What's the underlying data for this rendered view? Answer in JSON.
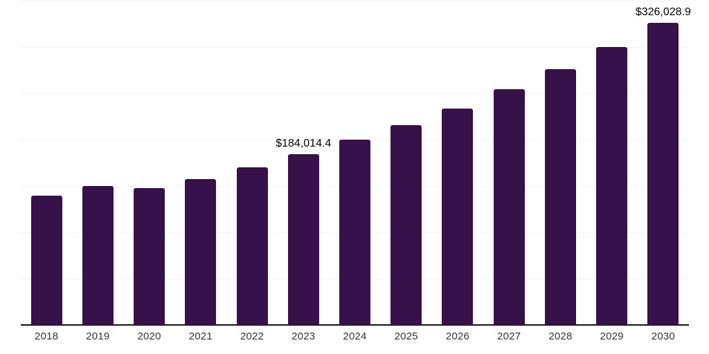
{
  "chart_data": {
    "type": "bar",
    "title": "",
    "xlabel": "",
    "ylabel": "",
    "categories": [
      "2018",
      "2019",
      "2020",
      "2021",
      "2022",
      "2023",
      "2024",
      "2025",
      "2026",
      "2027",
      "2028",
      "2029",
      "2030"
    ],
    "values": [
      139600,
      150100,
      147400,
      157600,
      170500,
      184014.4,
      199700,
      215900,
      233800,
      254500,
      276100,
      299800,
      326028.9
    ],
    "point_labels": [
      "",
      "",
      "",
      "",
      "",
      "$184,014.4",
      "",
      "",
      "",
      "",
      "",
      "",
      "$326,028.9"
    ],
    "ylim": [
      0,
      350000
    ],
    "gridline_values": [
      50000,
      100000,
      150000,
      200000,
      250000,
      300000,
      350000
    ],
    "grid": true,
    "legend": false,
    "y_axis_labels_visible": false,
    "colors": {
      "bar": "#371149",
      "axis": "#111111",
      "gridline": "#f2f2f4",
      "tick_label": "#333333",
      "value_label": "#000000"
    }
  }
}
